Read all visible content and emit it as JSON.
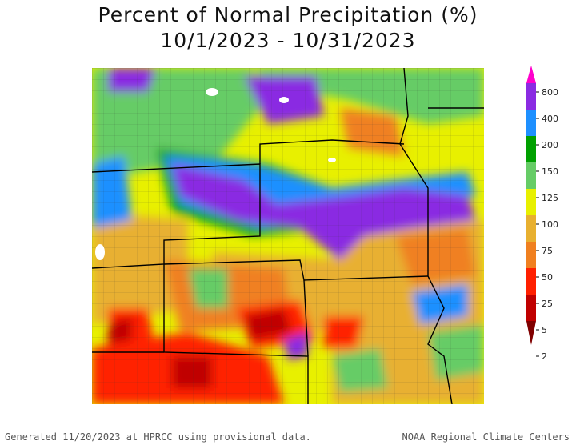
{
  "title": {
    "line1": "Percent of Normal Precipitation (%)",
    "line2": "10/1/2023 - 10/31/2023"
  },
  "legend": {
    "ticks": [
      "800",
      "400",
      "200",
      "150",
      "125",
      "100",
      "75",
      "50",
      "25",
      "5",
      "2"
    ],
    "colors": [
      "#ff00cc",
      "#8a2be2",
      "#1e90ff",
      "#00a000",
      "#66cc66",
      "#e8f000",
      "#e8b030",
      "#f08020",
      "#ff2000",
      "#c00000",
      "#800000"
    ]
  },
  "footer": {
    "left": "Generated 11/20/2023 at HPRCC using provisional data.",
    "right": "NOAA Regional Climate Centers"
  }
}
